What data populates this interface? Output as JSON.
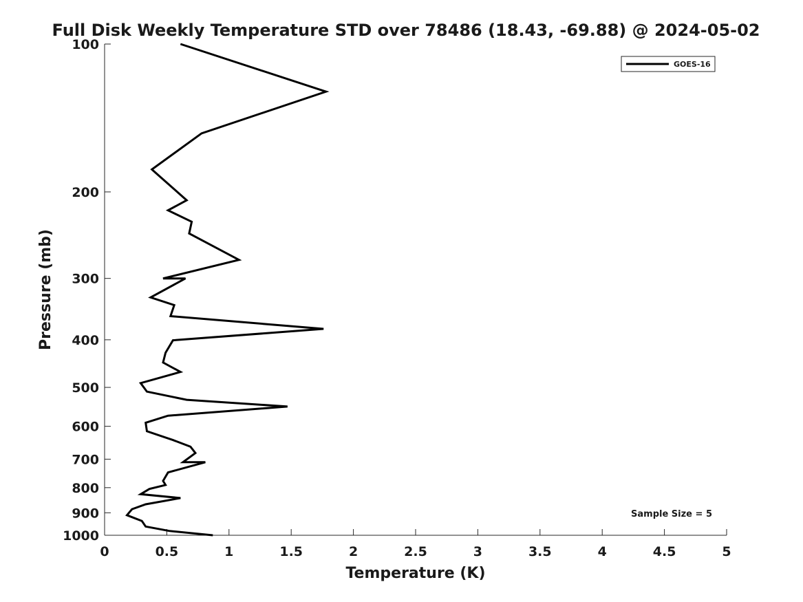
{
  "chart_data": {
    "type": "line",
    "title": "Full Disk Weekly Temperature STD over 78486 (18.43, -69.88) @ 2024-05-02",
    "xlabel": "Temperature (K)",
    "ylabel": "Pressure (mb)",
    "xlim": [
      0,
      5
    ],
    "ylim": [
      1000,
      100
    ],
    "y_scale": "log",
    "x_ticks": [
      "0",
      "0.5",
      "1",
      "1.5",
      "2",
      "2.5",
      "3",
      "3.5",
      "4",
      "4.5",
      "5"
    ],
    "y_ticks": [
      "100",
      "200",
      "300",
      "400",
      "500",
      "600",
      "700",
      "800",
      "900",
      "1000"
    ],
    "grid": false,
    "legend": {
      "position": "top-right",
      "entries": [
        "GOES-16"
      ]
    },
    "annotation": "Sample Size = 5",
    "series": [
      {
        "name": "GOES-16",
        "color": "#000000",
        "points": [
          [
            0.61,
            100
          ],
          [
            1.78,
            125
          ],
          [
            0.78,
            152
          ],
          [
            0.38,
            180
          ],
          [
            0.66,
            208
          ],
          [
            0.51,
            218
          ],
          [
            0.7,
            230
          ],
          [
            0.68,
            243
          ],
          [
            1.08,
            275
          ],
          [
            0.47,
            300
          ],
          [
            0.65,
            300
          ],
          [
            0.37,
            328
          ],
          [
            0.56,
            340
          ],
          [
            0.53,
            358
          ],
          [
            1.76,
            380
          ],
          [
            0.55,
            401
          ],
          [
            0.49,
            425
          ],
          [
            0.47,
            445
          ],
          [
            0.61,
            465
          ],
          [
            0.29,
            490
          ],
          [
            0.34,
            510
          ],
          [
            0.66,
            530
          ],
          [
            1.47,
            547
          ],
          [
            0.51,
            571
          ],
          [
            0.33,
            590
          ],
          [
            0.34,
            614
          ],
          [
            0.55,
            640
          ],
          [
            0.69,
            660
          ],
          [
            0.73,
            680
          ],
          [
            0.63,
            710
          ],
          [
            0.81,
            710
          ],
          [
            0.51,
            745
          ],
          [
            0.47,
            775
          ],
          [
            0.49,
            790
          ],
          [
            0.36,
            805
          ],
          [
            0.29,
            825
          ],
          [
            0.61,
            840
          ],
          [
            0.33,
            865
          ],
          [
            0.22,
            885
          ],
          [
            0.18,
            910
          ],
          [
            0.3,
            935
          ],
          [
            0.33,
            960
          ],
          [
            0.52,
            980
          ],
          [
            0.87,
            1000
          ]
        ]
      }
    ]
  }
}
